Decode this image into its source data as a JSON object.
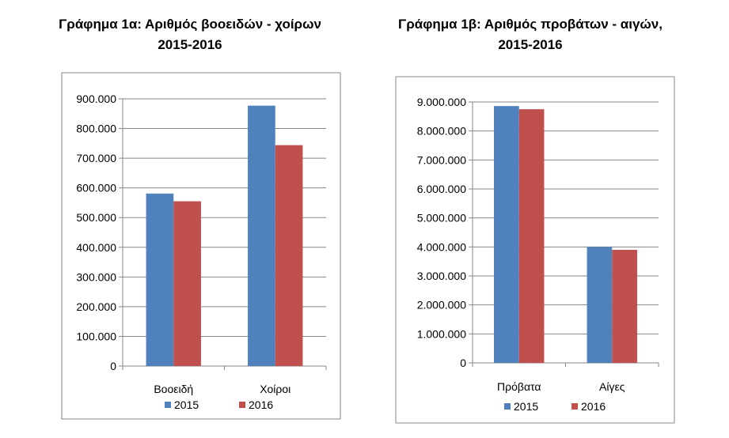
{
  "colors": {
    "s2015": "#4F81BD",
    "s2016": "#C0504D",
    "grid": "#868686",
    "border": "#868686"
  },
  "chart_data": [
    {
      "type": "bar",
      "title_line1": "Γράφημα 1α: Αριθμός βοοειδών  - χοίρων",
      "title_line2": "2015-2016",
      "categories": [
        "Βοοειδή",
        "Χοίροι"
      ],
      "series": [
        {
          "name": "2015",
          "values": [
            581000,
            877000
          ]
        },
        {
          "name": "2016",
          "values": [
            555000,
            744000
          ]
        }
      ],
      "yticks": [
        "0",
        "100.000",
        "200.000",
        "300.000",
        "400.000",
        "500.000",
        "600.000",
        "700.000",
        "800.000",
        "900.000"
      ],
      "ylim": [
        0,
        900000
      ],
      "grid": true,
      "legend": "bottom"
    },
    {
      "type": "bar",
      "title_line1": "Γράφημα 1β: Αριθμός προβάτων - αιγών,",
      "title_line2": "2015-2016",
      "categories": [
        "Πρόβατα",
        "Αίγες"
      ],
      "series": [
        {
          "name": "2015",
          "values": [
            8860000,
            4000000
          ]
        },
        {
          "name": "2016",
          "values": [
            8750000,
            3900000
          ]
        }
      ],
      "yticks": [
        "0",
        "1.000.000",
        "2.000.000",
        "3.000.000",
        "4.000.000",
        "5.000.000",
        "6.000.000",
        "7.000.000",
        "8.000.000",
        "9.000.000"
      ],
      "ylim": [
        0,
        9000000
      ],
      "grid": true,
      "legend": "bottom"
    }
  ]
}
